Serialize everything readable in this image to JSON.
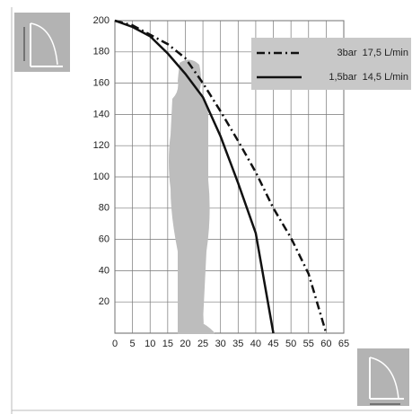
{
  "chart_data": {
    "type": "line",
    "x": [
      0,
      5,
      10,
      15,
      20,
      25,
      30,
      35,
      40,
      45,
      50,
      55,
      60
    ],
    "series": [
      {
        "name": "3bar  17,5 L/min",
        "color": "#111111",
        "dash": "dash-dot",
        "values": [
          200,
          197,
          191,
          185,
          176,
          160,
          142,
          123,
          103,
          80,
          61,
          38,
          0
        ]
      },
      {
        "name": "1,5bar  14,5 L/min",
        "color": "#111111",
        "dash": "solid",
        "values": [
          200,
          196,
          190,
          179,
          166,
          151,
          126,
          96,
          64,
          0,
          null,
          null,
          null
        ]
      }
    ],
    "xlim": [
      0,
      65
    ],
    "ylim": [
      0,
      200
    ],
    "xticks": [
      0,
      5,
      10,
      15,
      20,
      25,
      30,
      35,
      40,
      45,
      50,
      55,
      60,
      65
    ],
    "yticks": [
      20,
      40,
      60,
      80,
      100,
      120,
      140,
      160,
      180,
      200
    ],
    "grid": true,
    "legend": "upper right"
  }
}
